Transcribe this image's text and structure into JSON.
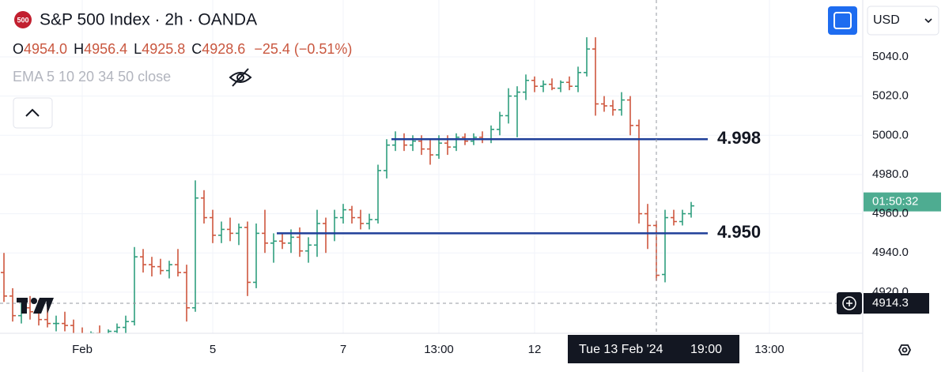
{
  "header": {
    "badge": "500",
    "title": "S&P 500 Index · 2h · OANDA",
    "ohlc": [
      {
        "key": "O",
        "value": "4954.0"
      },
      {
        "key": "H",
        "value": "4956.4"
      },
      {
        "key": "L",
        "value": "4925.8"
      },
      {
        "key": "C",
        "value": "4928.6"
      }
    ],
    "change": "−25.4 (−0.51%)",
    "indicator": "EMA 5 10 20 34 50 close",
    "currency": "USD"
  },
  "chart_data": {
    "type": "ohlc",
    "up_color": "#2f9e7e",
    "down_color": "#cf573e",
    "categories": [
      null,
      null,
      null,
      null,
      null,
      null,
      null,
      null,
      null,
      "Feb",
      null,
      null,
      null,
      null,
      null,
      null,
      null,
      null,
      null,
      null,
      null,
      null,
      null,
      null,
      "5",
      null,
      null,
      null,
      null,
      null,
      null,
      null,
      null,
      null,
      null,
      null,
      null,
      null,
      null,
      "7",
      null,
      null,
      null,
      null,
      null,
      null,
      null,
      null,
      null,
      null,
      "13:00",
      null,
      null,
      null,
      null,
      null,
      null,
      null,
      null,
      null,
      null,
      "12",
      null,
      null,
      null,
      null,
      null,
      null,
      null,
      null,
      null,
      null,
      null,
      null,
      null,
      null,
      null,
      null,
      null,
      null,
      null,
      null,
      null,
      null,
      null,
      null,
      null,
      null,
      "13:00"
    ],
    "open": [
      4930,
      4918,
      4908,
      4912,
      4910,
      4906,
      4904,
      4904,
      4903,
      4898,
      4896,
      4899,
      4897,
      4900,
      4902,
      4905,
      4938,
      4934,
      4933,
      4931,
      4934,
      4930,
      4912,
      4968,
      4958,
      4949,
      4952,
      4950,
      4953,
      4925,
      4950,
      4945,
      4946,
      4945,
      4948,
      4941,
      4944,
      4955,
      4950,
      4958,
      4962,
      4958,
      4955,
      4957,
      4982,
      4995,
      4998,
      4995,
      4997,
      4993,
      4990,
      4996,
      4994,
      4999,
      4997,
      4999,
      4998,
      5003,
      5010,
      5020,
      5022,
      5028,
      5025,
      5026,
      5024,
      5027,
      5025,
      5032,
      5044,
      5016,
      5015,
      5013,
      5018,
      5005,
      4960,
      4954,
      4929,
      4958,
      4956,
      4960,
      null,
      null,
      null,
      null,
      null,
      null,
      null,
      null,
      null
    ],
    "high": [
      4940,
      4922,
      4915,
      4918,
      4916,
      4912,
      4908,
      4910,
      4906,
      4902,
      4900,
      4903,
      4901,
      4904,
      4908,
      4943,
      4942,
      4938,
      4937,
      4936,
      4942,
      4934,
      4977,
      4972,
      4962,
      4956,
      4958,
      4955,
      4956,
      4955,
      4962,
      4950,
      4950,
      4952,
      4953,
      4948,
      4962,
      4958,
      4962,
      4965,
      4964,
      4962,
      4960,
      4985,
      4998,
      5002,
      5001,
      5000,
      5000,
      4998,
      5000,
      5000,
      5001,
      5001,
      5001,
      5002,
      5005,
      5012,
      5024,
      5025,
      5031,
      5030,
      5028,
      5029,
      5028,
      5030,
      5035,
      5050,
      5050,
      5020,
      5018,
      5022,
      5020,
      5008,
      4965,
      4956.4,
      4962,
      4962,
      4962,
      4966,
      null,
      null,
      null,
      null,
      null,
      null,
      null,
      null,
      null
    ],
    "low": [
      4915,
      4905,
      4904,
      4906,
      4903,
      4902,
      4900,
      4900,
      4895,
      4893,
      4892,
      4894,
      4893,
      4896,
      4899,
      4903,
      4930,
      4928,
      4929,
      4927,
      4928,
      4905,
      4910,
      4955,
      4945,
      4945,
      4946,
      4944,
      4918,
      4922,
      4940,
      4935,
      4942,
      4940,
      4938,
      4935,
      4938,
      4940,
      4946,
      4955,
      4955,
      4952,
      4952,
      4955,
      4978,
      4992,
      4992,
      4992,
      4990,
      4985,
      4988,
      4990,
      4992,
      4995,
      4995,
      4996,
      4996,
      5000,
      5006,
      4999,
      5018,
      5022,
      5022,
      5023,
      5022,
      5023,
      5022,
      5030,
      5010,
      5012,
      5010,
      5010,
      5000,
      4955,
      4942,
      4925.8,
      4925,
      4954,
      4954,
      4958,
      null,
      null,
      null,
      null,
      null,
      null,
      null,
      null,
      null
    ],
    "close": [
      4918,
      4908,
      4912,
      4910,
      4906,
      4904,
      4904,
      4903,
      4898,
      4896,
      4899,
      4897,
      4900,
      4902,
      4905,
      4938,
      4934,
      4933,
      4931,
      4934,
      4930,
      4912,
      4968,
      4958,
      4949,
      4952,
      4950,
      4953,
      4925,
      4950,
      4945,
      4946,
      4945,
      4948,
      4941,
      4944,
      4955,
      4950,
      4958,
      4962,
      4958,
      4955,
      4957,
      4982,
      4995,
      4998,
      4995,
      4997,
      4993,
      4990,
      4996,
      4994,
      4999,
      4997,
      4999,
      4998,
      5003,
      5010,
      5020,
      5022,
      5028,
      5025,
      5026,
      5024,
      5027,
      5025,
      5032,
      5044,
      5016,
      5015,
      5013,
      5018,
      5005,
      4960,
      4954,
      4928.6,
      4958,
      4956,
      4960,
      4964,
      null,
      null,
      null,
      null,
      null,
      null,
      null,
      null,
      null
    ],
    "ylim": [
      4899,
      5069
    ],
    "yticks": [
      {
        "value": 4920,
        "label": "4920.0"
      },
      {
        "value": 4940,
        "label": "4940.0"
      },
      {
        "value": 4960,
        "label": "4960.0"
      },
      {
        "value": 4980,
        "label": "4980.0"
      },
      {
        "value": 5000,
        "label": "5000.0"
      },
      {
        "value": 5020,
        "label": "5020.0"
      },
      {
        "value": 5040,
        "label": "5040.0"
      }
    ],
    "grid": true,
    "hlines": [
      {
        "value": 4998,
        "label": "4.998",
        "color": "#1f3f99"
      },
      {
        "value": 4950,
        "label": "4.950",
        "color": "#1f3f99"
      }
    ],
    "countdown": "01:50:32",
    "crosshair": {
      "date": "Tue 13 Feb '24",
      "time": "19:00",
      "price": 4914.3
    }
  }
}
